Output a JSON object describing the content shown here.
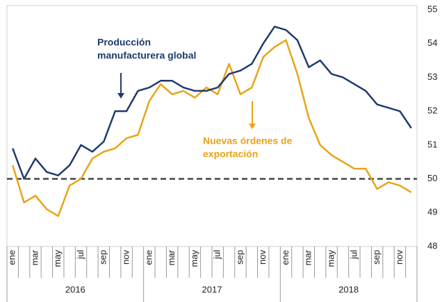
{
  "chart_data": {
    "type": "line",
    "categories": [
      "ene",
      null,
      "mar",
      null,
      "may",
      null,
      "jul",
      null,
      "sep",
      null,
      "nov",
      null,
      "ene",
      null,
      "mar",
      null,
      "may",
      null,
      "jul",
      null,
      "sep",
      null,
      "nov",
      null,
      "ene",
      null,
      "mar",
      null,
      "may",
      null,
      "jul",
      null,
      "sep",
      null,
      "nov",
      null
    ],
    "years": [
      "2016",
      "2017",
      "2018"
    ],
    "series": [
      {
        "name": [
          "Producción",
          "manufacturera global"
        ],
        "color": "#1f3a6e",
        "values": [
          50.9,
          50.0,
          50.6,
          50.2,
          50.1,
          50.4,
          51.0,
          50.8,
          51.1,
          52.0,
          52.0,
          52.6,
          52.7,
          52.9,
          52.9,
          52.7,
          52.6,
          52.6,
          52.7,
          53.1,
          53.2,
          53.4,
          54.0,
          54.5,
          54.4,
          54.1,
          53.3,
          53.5,
          53.1,
          53.0,
          52.8,
          52.6,
          52.2,
          52.1,
          52.0,
          51.5
        ]
      },
      {
        "name": [
          "Nuevas órdenes de",
          "exportación"
        ],
        "color": "#e8a317",
        "values": [
          50.4,
          49.3,
          49.5,
          49.1,
          48.9,
          49.8,
          50.0,
          50.6,
          50.8,
          50.9,
          51.2,
          51.3,
          52.3,
          52.8,
          52.5,
          52.6,
          52.4,
          52.7,
          52.5,
          53.4,
          52.5,
          52.7,
          53.6,
          53.9,
          54.1,
          53.1,
          51.8,
          51.0,
          50.7,
          50.5,
          50.3,
          50.3,
          49.7,
          49.9,
          49.8,
          49.6
        ]
      }
    ],
    "ylim": [
      48,
      55
    ],
    "yticks": [
      48,
      49,
      50,
      51,
      52,
      53,
      54,
      55
    ],
    "reference_line": 50
  }
}
